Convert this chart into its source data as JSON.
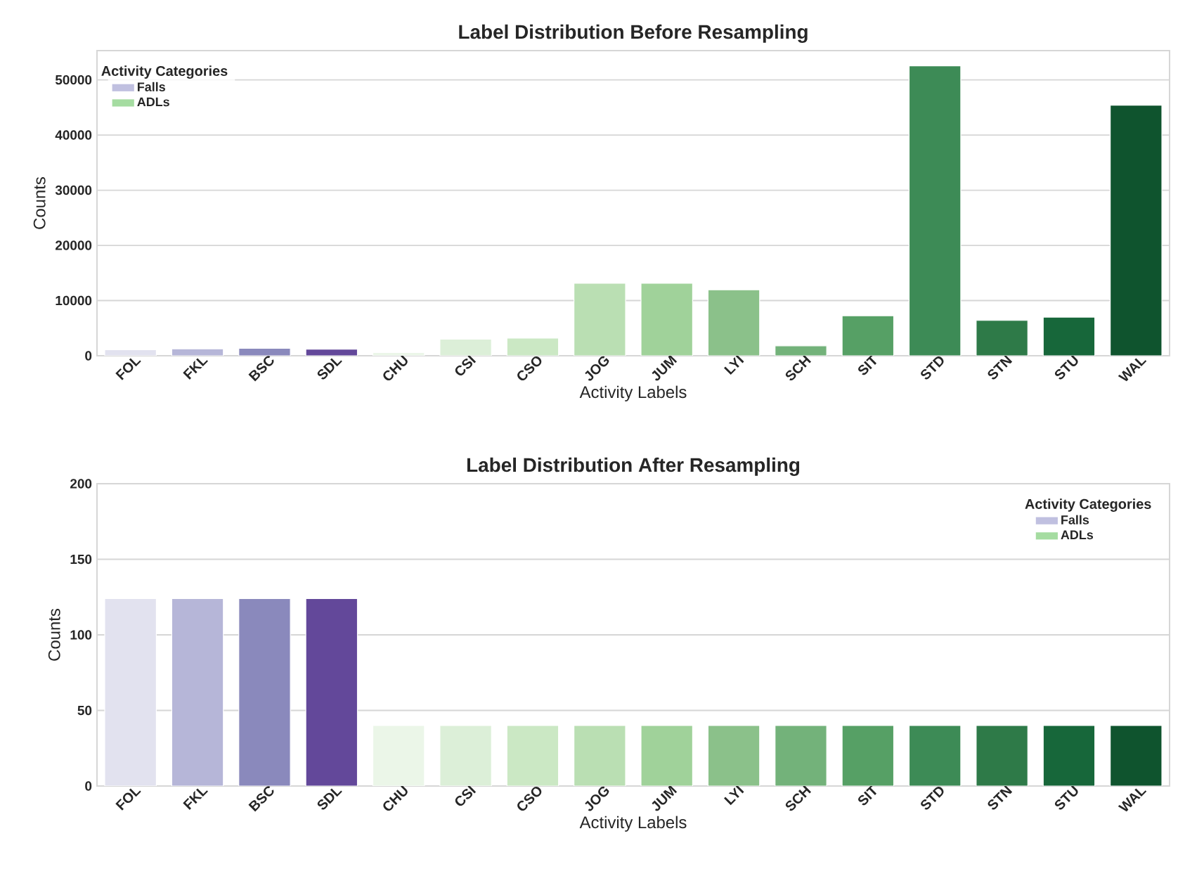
{
  "chart_data": [
    {
      "type": "bar",
      "title": "Label Distribution Before Resampling",
      "xlabel": "Activity Labels",
      "ylabel": "Counts",
      "categories": [
        "FOL",
        "FKL",
        "BSC",
        "SDL",
        "CHU",
        "CSI",
        "CSO",
        "JOG",
        "JUM",
        "LYI",
        "SCH",
        "SIT",
        "STD",
        "STN",
        "STU",
        "WAL"
      ],
      "series": [
        {
          "name": "Falls",
          "color": "#b0b0d8",
          "values": [
            1100,
            1250,
            1350,
            1200,
            null,
            null,
            null,
            null,
            null,
            null,
            null,
            null,
            null,
            null,
            null,
            null
          ],
          "colors": [
            "#e2e2ef",
            "#b6b6d8",
            "#8a89bc",
            "#63489a",
            null,
            null,
            null,
            null,
            null,
            null,
            null,
            null,
            null,
            null,
            null,
            null
          ]
        },
        {
          "name": "ADLs",
          "color": "#8ed38a",
          "values": [
            null,
            null,
            null,
            null,
            600,
            3000,
            3200,
            13150,
            13150,
            11950,
            1800,
            7250,
            52550,
            6400,
            7000,
            45400
          ],
          "colors": [
            null,
            null,
            null,
            null,
            "#ebf6e8",
            "#dcefd8",
            "#cbe8c4",
            "#badfb3",
            "#a0d29a",
            "#8bc18a",
            "#73b27a",
            "#56a065",
            "#3d8b56",
            "#2e7a48",
            "#17673a",
            "#0f542e"
          ]
        }
      ],
      "ylim": [
        0,
        55300
      ],
      "yticks": [
        0,
        10000,
        20000,
        30000,
        40000,
        50000
      ],
      "grid": "y",
      "legend": "top left",
      "legend_title": "Activity Categories"
    },
    {
      "type": "bar",
      "title": "Label Distribution After Resampling",
      "xlabel": "Activity Labels",
      "ylabel": "Counts",
      "categories": [
        "FOL",
        "FKL",
        "BSC",
        "SDL",
        "CHU",
        "CSI",
        "CSO",
        "JOG",
        "JUM",
        "LYI",
        "SCH",
        "SIT",
        "STD",
        "STN",
        "STU",
        "WAL"
      ],
      "series": [
        {
          "name": "Falls",
          "color": "#b0b0d8",
          "values": [
            124,
            124,
            124,
            124,
            null,
            null,
            null,
            null,
            null,
            null,
            null,
            null,
            null,
            null,
            null,
            null
          ],
          "colors": [
            "#e2e2ef",
            "#b6b6d8",
            "#8a89bc",
            "#63489a",
            null,
            null,
            null,
            null,
            null,
            null,
            null,
            null,
            null,
            null,
            null,
            null
          ]
        },
        {
          "name": "ADLs",
          "color": "#8ed38a",
          "values": [
            null,
            null,
            null,
            null,
            40,
            40,
            40,
            40,
            40,
            40,
            40,
            40,
            40,
            40,
            40,
            40
          ],
          "colors": [
            null,
            null,
            null,
            null,
            "#ebf6e8",
            "#dcefd8",
            "#cbe8c4",
            "#badfb3",
            "#a0d29a",
            "#8bc18a",
            "#73b27a",
            "#56a065",
            "#3d8b56",
            "#2e7a48",
            "#17673a",
            "#0f542e"
          ]
        }
      ],
      "ylim": [
        0,
        200
      ],
      "yticks": [
        0,
        50,
        100,
        150,
        200
      ],
      "grid": "y",
      "legend": "top right",
      "legend_title": "Activity Categories"
    }
  ]
}
